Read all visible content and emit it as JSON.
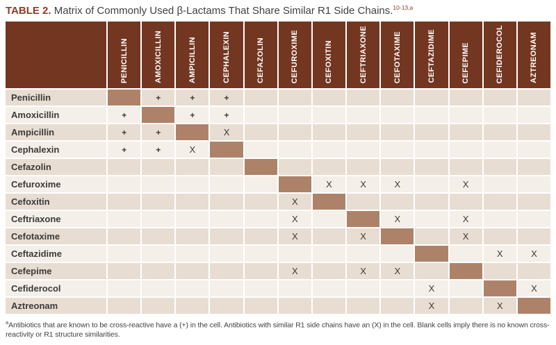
{
  "title": {
    "label": "TABLE 2.",
    "text": " Matrix of Commonly Used β-Lactams That Share Similar R1 Side Chains.",
    "citation": "10-13,a"
  },
  "columns": [
    "PENICILLIN",
    "AMOXICILLIN",
    "AMPICILLIN",
    "CEPHALEXIN",
    "CEFAZOLIN",
    "CEFUROXIME",
    "CEFOXITIN",
    "CEFTRIAXONE",
    "CEFOTAXIME",
    "CEFTAZIDIME",
    "CEFEPIME",
    "CEFIDEROCOL",
    "AZTREONAM"
  ],
  "rows": [
    {
      "label": "Penicillin",
      "cells": [
        "diag",
        "+",
        "+",
        "+",
        "",
        "",
        "",
        "",
        "",
        "",
        "",
        "",
        ""
      ]
    },
    {
      "label": "Amoxicillin",
      "cells": [
        "+",
        "diag",
        "+",
        "+",
        "",
        "",
        "",
        "",
        "",
        "",
        "",
        "",
        ""
      ]
    },
    {
      "label": "Ampicillin",
      "cells": [
        "+",
        "+",
        "diag",
        "X",
        "",
        "",
        "",
        "",
        "",
        "",
        "",
        "",
        ""
      ]
    },
    {
      "label": "Cephalexin",
      "cells": [
        "+",
        "+",
        "X",
        "diag",
        "",
        "",
        "",
        "",
        "",
        "",
        "",
        "",
        ""
      ]
    },
    {
      "label": "Cefazolin",
      "cells": [
        "",
        "",
        "",
        "",
        "diag",
        "",
        "",
        "",
        "",
        "",
        "",
        "",
        ""
      ]
    },
    {
      "label": "Cefuroxime",
      "cells": [
        "",
        "",
        "",
        "",
        "",
        "diag",
        "X",
        "X",
        "X",
        "",
        "X",
        "",
        ""
      ]
    },
    {
      "label": "Cefoxitin",
      "cells": [
        "",
        "",
        "",
        "",
        "",
        "X",
        "diag",
        "",
        "",
        "",
        "",
        "",
        ""
      ]
    },
    {
      "label": "Ceftriaxone",
      "cells": [
        "",
        "",
        "",
        "",
        "",
        "X",
        "",
        "diag",
        "X",
        "",
        "X",
        "",
        ""
      ]
    },
    {
      "label": "Cefotaxime",
      "cells": [
        "",
        "",
        "",
        "",
        "",
        "X",
        "",
        "X",
        "diag",
        "",
        "X",
        "",
        ""
      ]
    },
    {
      "label": "Ceftazidime",
      "cells": [
        "",
        "",
        "",
        "",
        "",
        "",
        "",
        "",
        "",
        "diag",
        "",
        "X",
        "X"
      ]
    },
    {
      "label": "Cefepime",
      "cells": [
        "",
        "",
        "",
        "",
        "",
        "X",
        "",
        "X",
        "X",
        "",
        "diag",
        "",
        ""
      ]
    },
    {
      "label": "Cefiderocol",
      "cells": [
        "",
        "",
        "",
        "",
        "",
        "",
        "",
        "",
        "",
        "X",
        "",
        "diag",
        "X"
      ]
    },
    {
      "label": "Aztreonam",
      "cells": [
        "",
        "",
        "",
        "",
        "",
        "",
        "",
        "",
        "",
        "X",
        "",
        "X",
        "diag"
      ]
    }
  ],
  "legend": {
    "cross_reactive_mark": "+",
    "similar_r1_mark": "X",
    "diagonal_meaning": "same-drug"
  },
  "footnote": {
    "marker": "a",
    "text": "Antibiotics that are known to be cross-reactive have a (+) in the cell. Antibiotics with similar R1 side chains have an (X) in the cell. Blank cells imply there is no known cross-reactivity or R1 structure similarities."
  },
  "colors": {
    "header_bg": "#733621",
    "diagonal_cell": "#ae8268",
    "row_stripe_dark": "#e8ddd2",
    "row_stripe_light": "#f4efe9",
    "title_accent": "#8c3b2a",
    "body_text": "#414042",
    "mark_text": "#3a3a3a",
    "header_text": "#ffffff"
  }
}
